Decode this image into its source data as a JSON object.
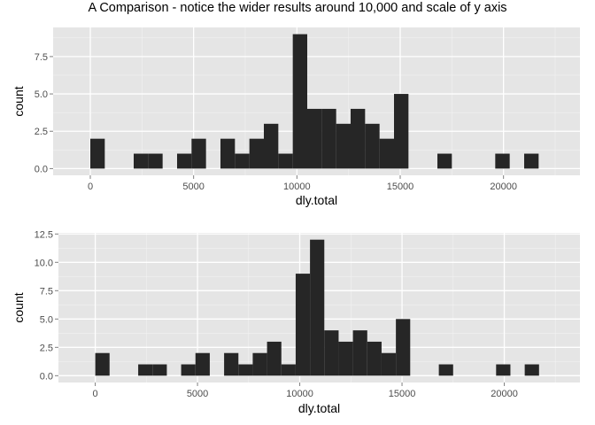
{
  "title": "A Comparison - notice the wider results around 10,000 and scale of y axis",
  "colors": {
    "panel": "#e5e5e5",
    "grid_major": "#ffffff",
    "grid_minor": "#f2f2f2",
    "bar": "#262626",
    "tick_text": "#4d4d4d"
  },
  "chart_data": [
    {
      "type": "bar",
      "subtype": "histogram",
      "xlabel": "dly.total",
      "ylabel": "count",
      "xlim": [
        -1800,
        23700
      ],
      "ylim": [
        -0.45,
        9.45
      ],
      "x_ticks": [
        0,
        5000,
        10000,
        15000,
        20000
      ],
      "x_tick_labels": [
        "0",
        "5000",
        "10000",
        "15000",
        "20000"
      ],
      "y_ticks": [
        0,
        2.5,
        5,
        7.5
      ],
      "y_tick_labels": [
        "0.0",
        "2.5",
        "5.0",
        "7.5"
      ],
      "grid": true,
      "bins": [
        {
          "x0": 0,
          "x1": 700,
          "count": 2
        },
        {
          "x0": 2100,
          "x1": 2800,
          "count": 1
        },
        {
          "x0": 2800,
          "x1": 3500,
          "count": 1
        },
        {
          "x0": 4200,
          "x1": 4900,
          "count": 1
        },
        {
          "x0": 4900,
          "x1": 5600,
          "count": 2
        },
        {
          "x0": 6300,
          "x1": 7000,
          "count": 2
        },
        {
          "x0": 7000,
          "x1": 7700,
          "count": 1
        },
        {
          "x0": 7700,
          "x1": 8400,
          "count": 2
        },
        {
          "x0": 8400,
          "x1": 9100,
          "count": 3
        },
        {
          "x0": 9100,
          "x1": 9800,
          "count": 1
        },
        {
          "x0": 9800,
          "x1": 10500,
          "count": 9
        },
        {
          "x0": 10500,
          "x1": 11200,
          "count": 4
        },
        {
          "x0": 11200,
          "x1": 11900,
          "count": 4
        },
        {
          "x0": 11900,
          "x1": 12600,
          "count": 3
        },
        {
          "x0": 12600,
          "x1": 13300,
          "count": 4
        },
        {
          "x0": 13300,
          "x1": 14000,
          "count": 3
        },
        {
          "x0": 14000,
          "x1": 14700,
          "count": 2
        },
        {
          "x0": 14700,
          "x1": 15400,
          "count": 5
        },
        {
          "x0": 16800,
          "x1": 17500,
          "count": 1
        },
        {
          "x0": 19600,
          "x1": 20300,
          "count": 1
        },
        {
          "x0": 21000,
          "x1": 21700,
          "count": 1
        }
      ]
    },
    {
      "type": "bar",
      "subtype": "histogram",
      "xlabel": "dly.total",
      "ylabel": "count",
      "xlim": [
        -1800,
        23700
      ],
      "ylim": [
        -0.6,
        12.6
      ],
      "x_ticks": [
        0,
        5000,
        10000,
        15000,
        20000
      ],
      "x_tick_labels": [
        "0",
        "5000",
        "10000",
        "15000",
        "20000"
      ],
      "y_ticks": [
        0,
        2.5,
        5,
        7.5,
        10,
        12.5
      ],
      "y_tick_labels": [
        "0.0",
        "2.5",
        "5.0",
        "7.5",
        "10.0",
        "12.5"
      ],
      "grid": true,
      "bins": [
        {
          "x0": 0,
          "x1": 700,
          "count": 2
        },
        {
          "x0": 2100,
          "x1": 2800,
          "count": 1
        },
        {
          "x0": 2800,
          "x1": 3500,
          "count": 1
        },
        {
          "x0": 4200,
          "x1": 4900,
          "count": 1
        },
        {
          "x0": 4900,
          "x1": 5600,
          "count": 2
        },
        {
          "x0": 6300,
          "x1": 7000,
          "count": 2
        },
        {
          "x0": 7000,
          "x1": 7700,
          "count": 1
        },
        {
          "x0": 7700,
          "x1": 8400,
          "count": 2
        },
        {
          "x0": 8400,
          "x1": 9100,
          "count": 3
        },
        {
          "x0": 9100,
          "x1": 9800,
          "count": 1
        },
        {
          "x0": 9800,
          "x1": 10500,
          "count": 9
        },
        {
          "x0": 10500,
          "x1": 11200,
          "count": 12
        },
        {
          "x0": 11200,
          "x1": 11900,
          "count": 4
        },
        {
          "x0": 11900,
          "x1": 12600,
          "count": 3
        },
        {
          "x0": 12600,
          "x1": 13300,
          "count": 4
        },
        {
          "x0": 13300,
          "x1": 14000,
          "count": 3
        },
        {
          "x0": 14000,
          "x1": 14700,
          "count": 2
        },
        {
          "x0": 14700,
          "x1": 15400,
          "count": 5
        },
        {
          "x0": 16800,
          "x1": 17500,
          "count": 1
        },
        {
          "x0": 19600,
          "x1": 20300,
          "count": 1
        },
        {
          "x0": 21000,
          "x1": 21700,
          "count": 1
        }
      ]
    }
  ]
}
